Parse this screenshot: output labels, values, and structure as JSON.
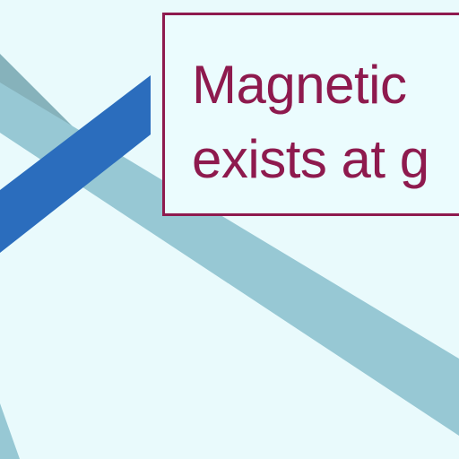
{
  "callout": {
    "lines": [
      "Magnetic",
      "exists at g"
    ]
  },
  "colors": {
    "background": "#e9fafc",
    "ribbon_light": "#97c8d4",
    "ribbon_gray": "#86b2bb",
    "ribbon_blue": "#2b6dbd",
    "callout_text": "#8e1a4e",
    "callout_border": "#8e1a4e"
  }
}
